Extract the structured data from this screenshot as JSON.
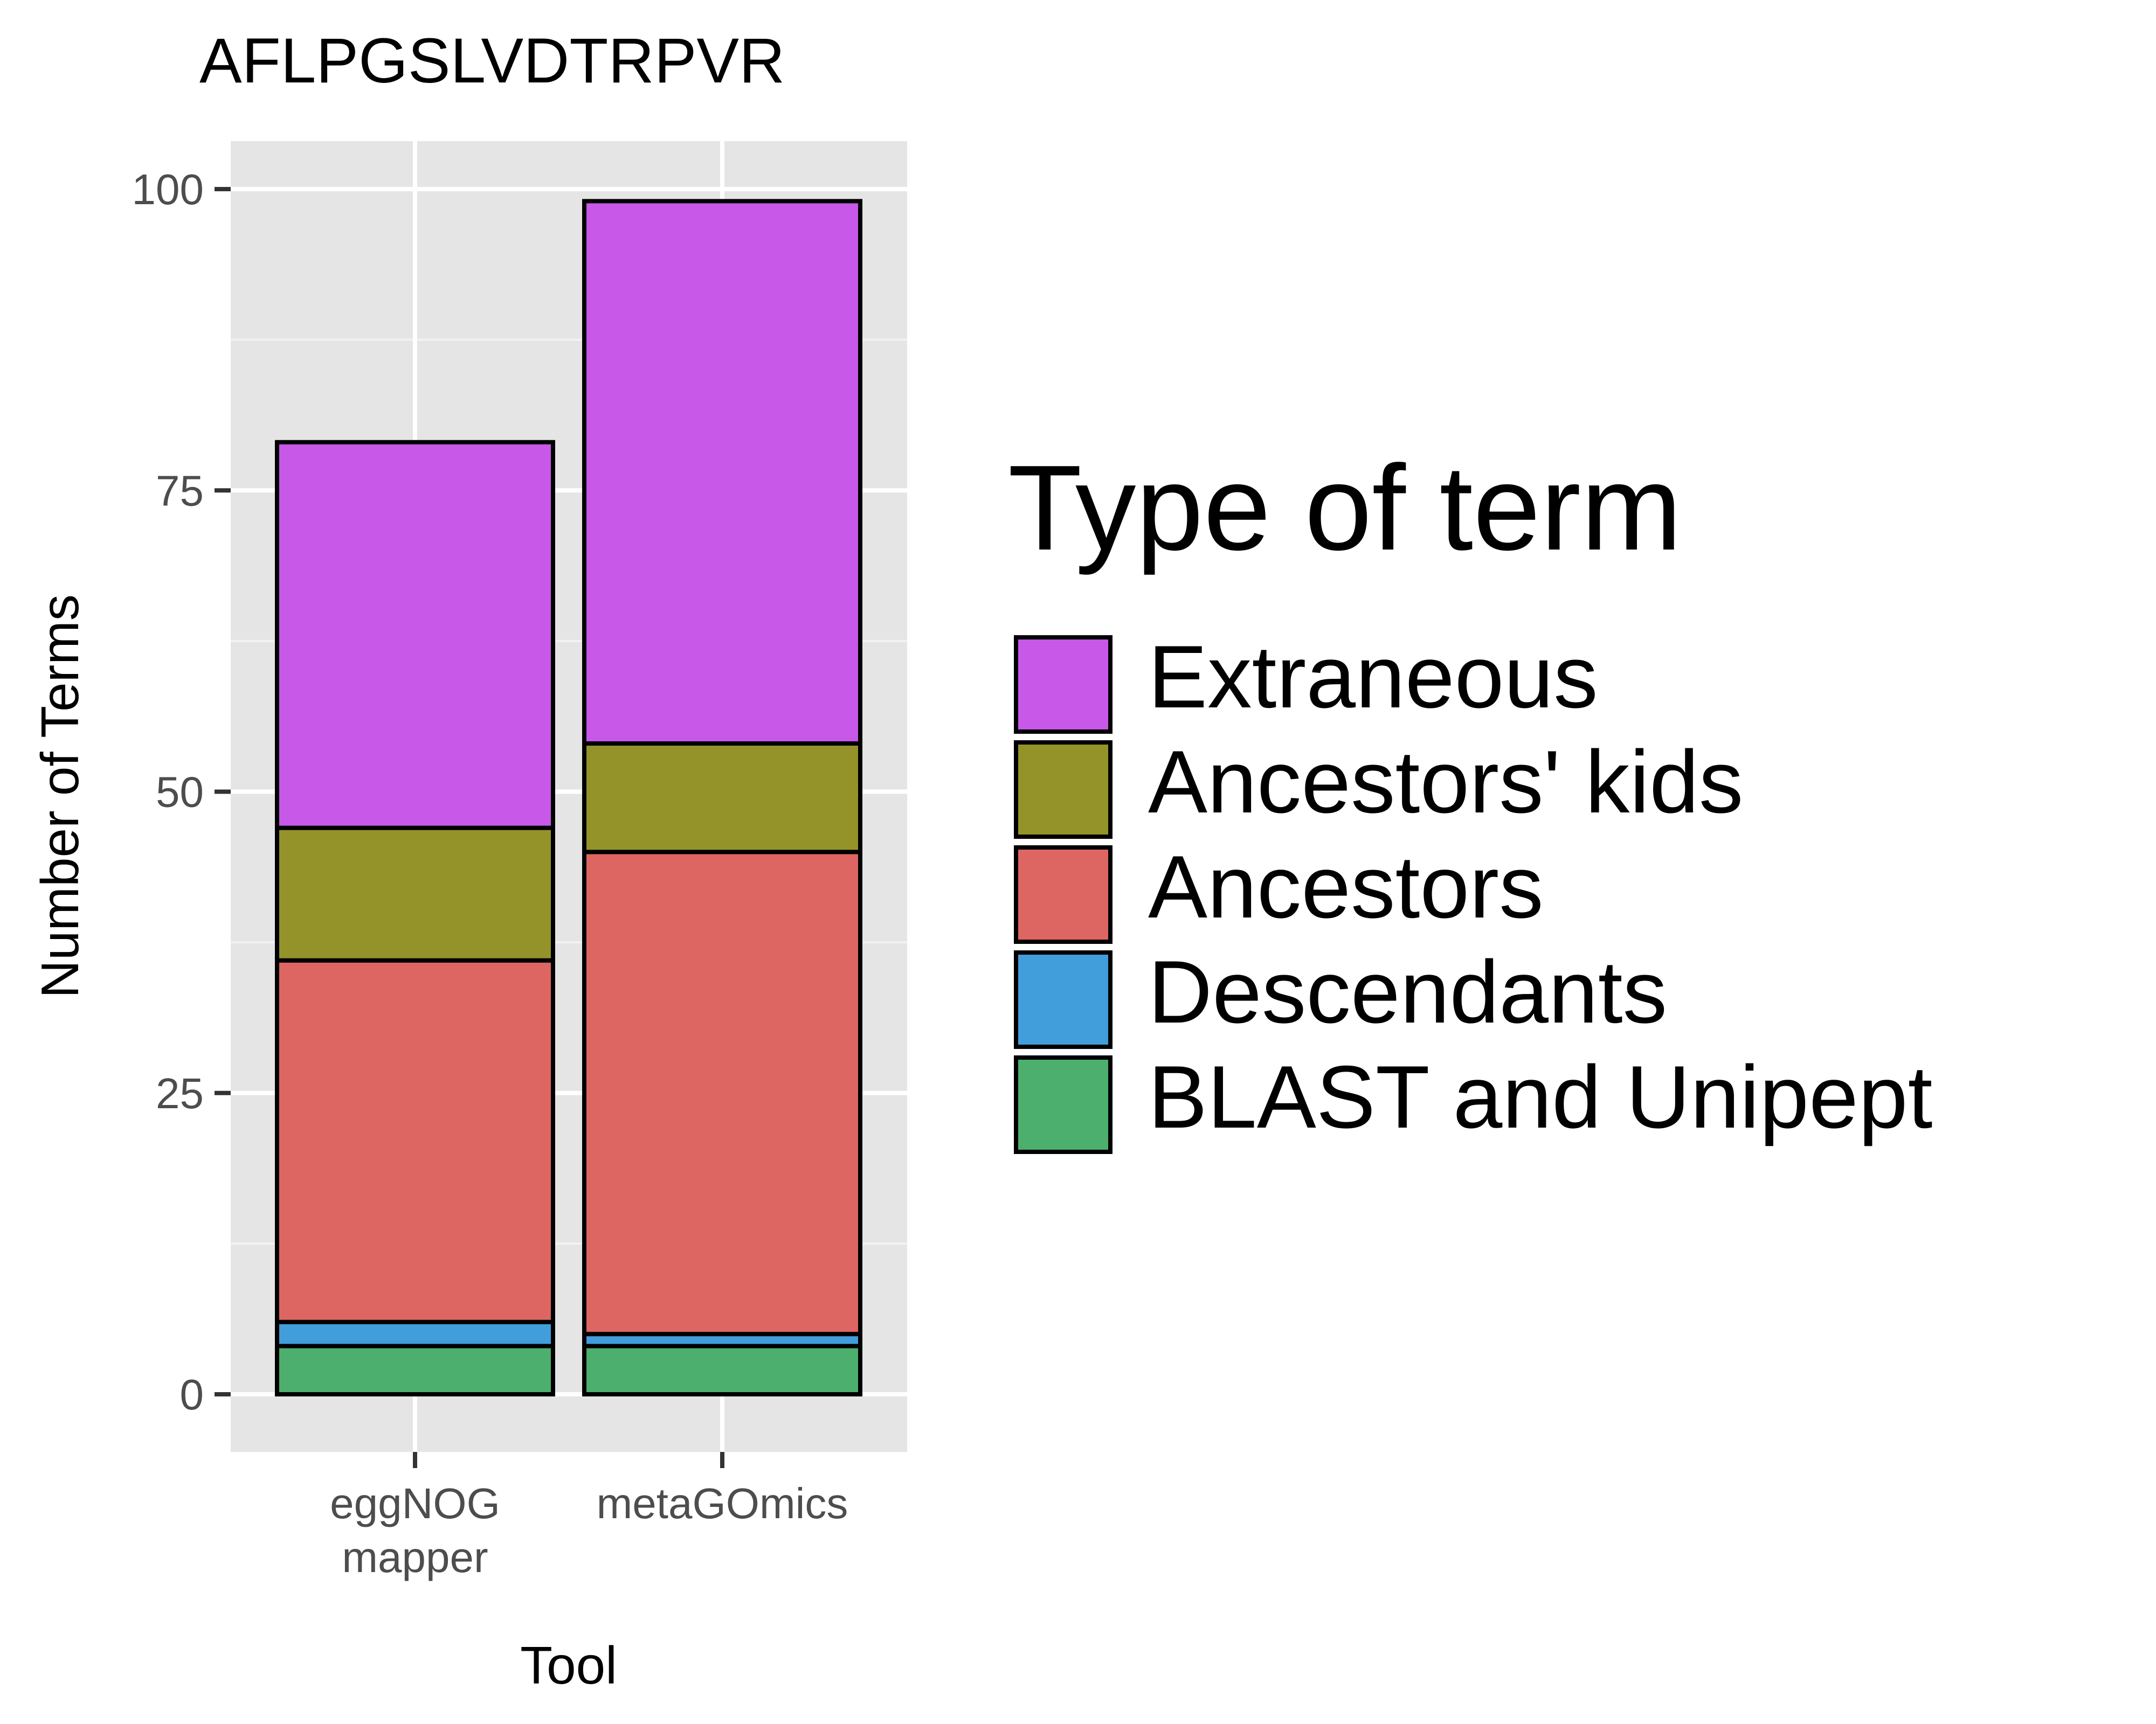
{
  "chart_data": {
    "type": "bar",
    "stacked": true,
    "title": "AFLPGSLVDTRPVR",
    "xlabel": "Tool",
    "ylabel": "Number of Terms",
    "categories": [
      [
        "eggNOG",
        "mapper"
      ],
      [
        "metaGOmics"
      ]
    ],
    "ylim": [
      -4,
      102
    ],
    "yticks": [
      0,
      25,
      50,
      75,
      100
    ],
    "grid": true,
    "legend": {
      "title": "Type of term",
      "placement": "right"
    },
    "series": [
      {
        "name": "BLAST and Unipept",
        "color": "#4daf6e",
        "values": [
          4,
          4
        ]
      },
      {
        "name": "Descendants",
        "color": "#429ddb",
        "values": [
          2,
          1
        ]
      },
      {
        "name": "Ancestors",
        "color": "#dd6662",
        "values": [
          30,
          40
        ]
      },
      {
        "name": "Ancestors' kids",
        "color": "#949329",
        "values": [
          11,
          9
        ]
      },
      {
        "name": "Extraneous",
        "color": "#c758e8",
        "values": [
          32,
          45
        ]
      }
    ],
    "legend_order": [
      "Extraneous",
      "Ancestors' kids",
      "Ancestors",
      "Descendants",
      "BLAST and Unipept"
    ]
  }
}
